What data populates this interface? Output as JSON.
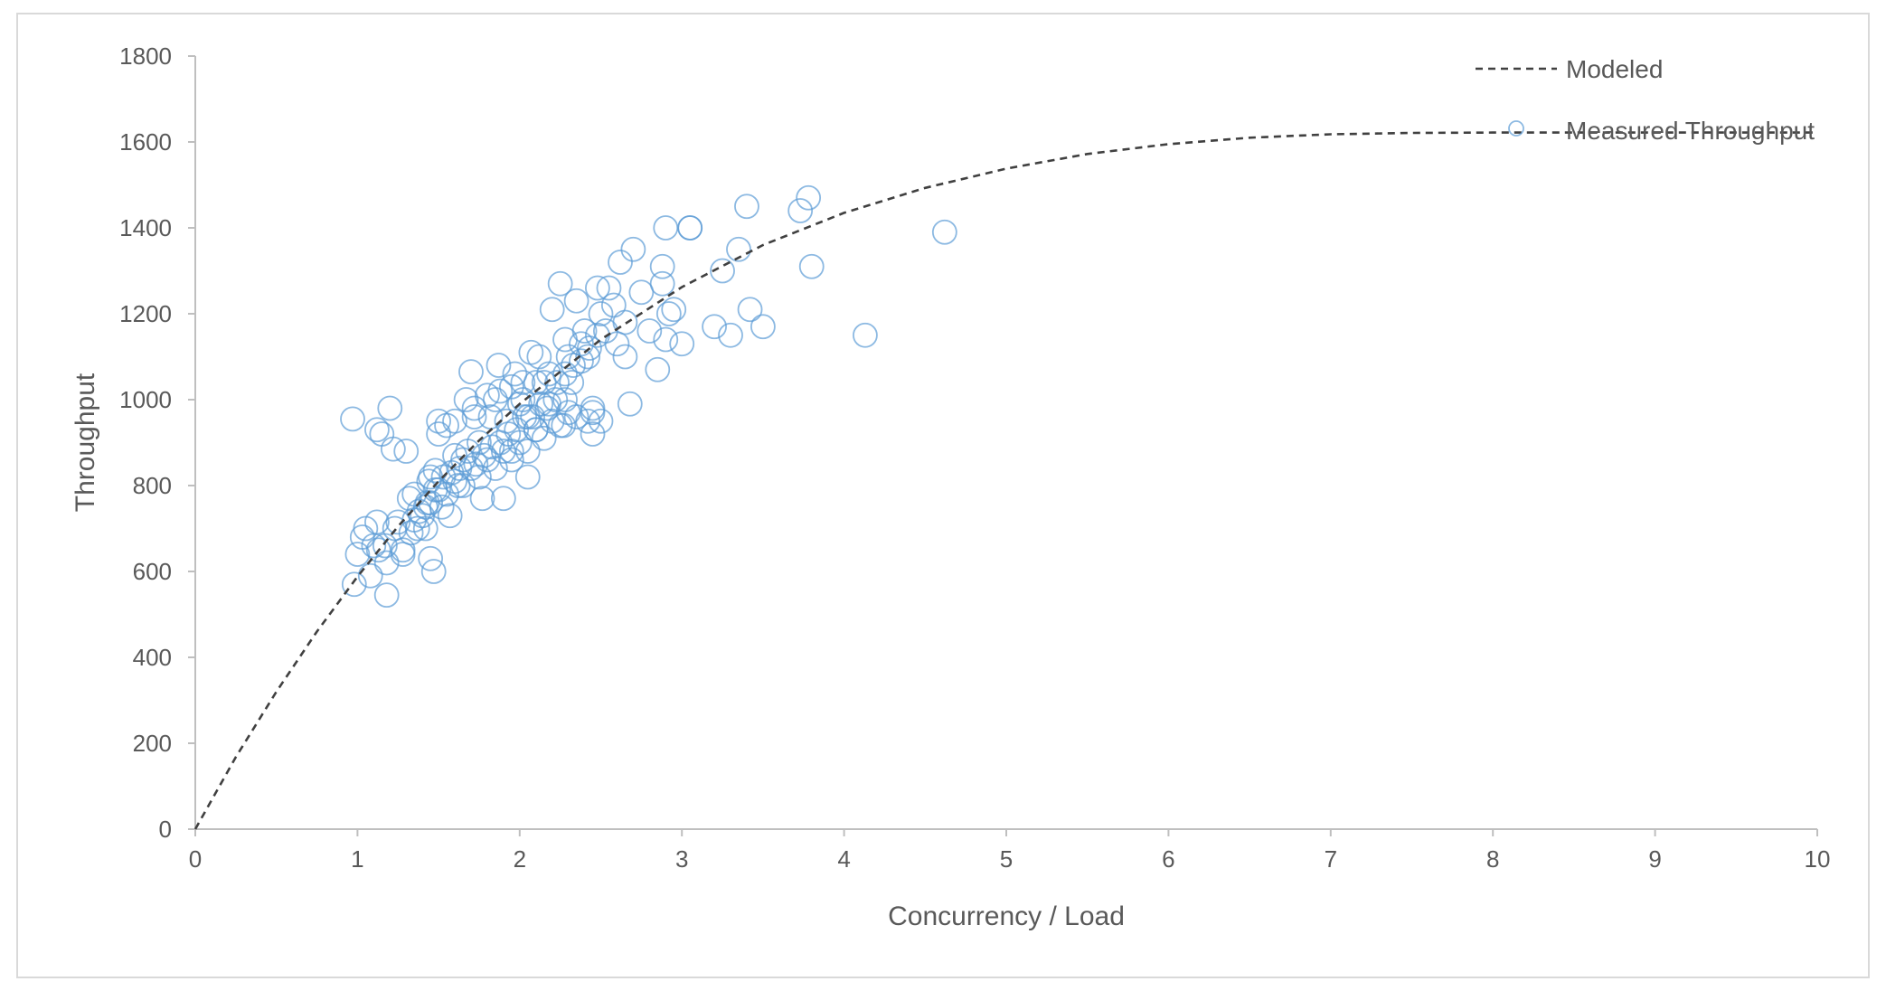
{
  "chart_data": {
    "type": "scatter",
    "title": "",
    "xlabel": "Concurrency / Load",
    "ylabel": "Throughput",
    "xlim": [
      0,
      10
    ],
    "ylim": [
      0,
      1800
    ],
    "x_ticks": [
      "0",
      "1",
      "2",
      "3",
      "4",
      "5",
      "6",
      "7",
      "8",
      "9",
      "10"
    ],
    "y_ticks": [
      "0",
      "200",
      "400",
      "600",
      "800",
      "1000",
      "1200",
      "1400",
      "1600",
      "1800"
    ],
    "grid": false,
    "legend_position": "top-right",
    "colors": {
      "measured": "#5b9bd5",
      "modeled": "#404040",
      "axis": "#bfbfbf",
      "text": "#595959"
    },
    "series": [
      {
        "name": "Modeled",
        "type": "line",
        "style": "dashed",
        "x": [
          0,
          0.25,
          0.5,
          0.75,
          1,
          1.25,
          1.5,
          1.75,
          2,
          2.5,
          3,
          3.5,
          4,
          4.5,
          5,
          5.5,
          6,
          6.5,
          7,
          7.5,
          8,
          8.5,
          9,
          9.5,
          10
        ],
        "y": [
          0,
          168,
          320,
          460,
          588,
          705,
          810,
          905,
          990,
          1140,
          1262,
          1360,
          1435,
          1493,
          1538,
          1572,
          1595,
          1610,
          1618,
          1621,
          1622,
          1622,
          1622,
          1622,
          1622
        ]
      },
      {
        "name": "Measured Throughput",
        "type": "scatter",
        "x": [
          0.97,
          1.0,
          1.05,
          1.1,
          1.12,
          1.15,
          1.18,
          1.2,
          1.22,
          1.25,
          1.28,
          1.3,
          1.32,
          1.35,
          1.37,
          1.4,
          1.42,
          1.44,
          1.45,
          1.47,
          1.48,
          1.5,
          1.52,
          1.55,
          1.57,
          1.6,
          1.62,
          1.65,
          1.67,
          1.7,
          1.72,
          1.75,
          1.77,
          1.8,
          1.82,
          1.85,
          1.87,
          1.9,
          1.92,
          1.95,
          1.97,
          2.0,
          2.02,
          2.05,
          2.07,
          2.1,
          2.12,
          2.15,
          2.17,
          2.2,
          2.22,
          2.25,
          2.27,
          2.3,
          2.32,
          2.35,
          2.38,
          2.4,
          2.42,
          2.45,
          2.48,
          2.5,
          2.55,
          2.6,
          2.62,
          2.65,
          2.7,
          2.75,
          2.8,
          2.85,
          2.88,
          2.9,
          2.95,
          3.0,
          3.05,
          3.2,
          3.25,
          3.3,
          3.35,
          3.4,
          3.42,
          3.5,
          3.73,
          3.78,
          3.8,
          4.13,
          4.62,
          0.98,
          1.03,
          1.08,
          1.13,
          1.18,
          1.23,
          1.28,
          1.33,
          1.38,
          1.43,
          1.48,
          1.53,
          1.58,
          1.63,
          1.68,
          1.73,
          1.78,
          1.83,
          1.88,
          1.93,
          1.98,
          2.03,
          2.08,
          2.13,
          2.18,
          2.23,
          2.28,
          2.33,
          2.38,
          2.43,
          2.48,
          2.53,
          1.45,
          1.5,
          1.6,
          1.7,
          1.8,
          1.9,
          2.0,
          2.1,
          2.2,
          2.3,
          1.42,
          1.55,
          1.65,
          1.75,
          1.85,
          1.95,
          2.05,
          2.15,
          2.25,
          2.35,
          2.45,
          1.35,
          1.6,
          1.72,
          1.88,
          2.02,
          2.18,
          2.28,
          2.42,
          2.58,
          2.68,
          2.88,
          3.05,
          2.92,
          2.28,
          2.5,
          2.65,
          2.9,
          1.17,
          1.12,
          1.45,
          1.5,
          2.45,
          2.1,
          2.05,
          1.95
        ],
        "y": [
          955,
          640,
          700,
          660,
          715,
          920,
          545,
          980,
          885,
          715,
          640,
          880,
          770,
          780,
          700,
          730,
          700,
          810,
          630,
          600,
          835,
          920,
          750,
          940,
          730,
          870,
          800,
          860,
          1000,
          1065,
          960,
          900,
          770,
          1010,
          960,
          1000,
          1080,
          770,
          950,
          880,
          1060,
          990,
          1000,
          820,
          1110,
          1040,
          1100,
          1040,
          980,
          1210,
          1000,
          1270,
          940,
          1100,
          1040,
          1230,
          1130,
          1160,
          950,
          920,
          1260,
          950,
          1260,
          1130,
          1320,
          1180,
          1350,
          1250,
          1160,
          1070,
          1310,
          1400,
          1210,
          1130,
          1400,
          1170,
          1300,
          1150,
          1350,
          1450,
          1210,
          1170,
          1440,
          1470,
          1310,
          1150,
          1390,
          570,
          680,
          590,
          650,
          620,
          700,
          650,
          690,
          740,
          760,
          790,
          820,
          830,
          840,
          880,
          850,
          870,
          890,
          900,
          920,
          930,
          960,
          960,
          990,
          990,
          1040,
          1060,
          1080,
          1090,
          1120,
          1150,
          1160,
          760,
          790,
          810,
          840,
          860,
          880,
          900,
          930,
          950,
          970,
          750,
          780,
          800,
          820,
          840,
          860,
          880,
          910,
          940,
          960,
          980,
          720,
          950,
          980,
          1020,
          1040,
          1060,
          1000,
          1100,
          1220,
          990,
          1270,
          1400,
          1200,
          1140,
          1200,
          1100,
          1140,
          660,
          930,
          820,
          950,
          970,
          930,
          960,
          1030
        ]
      }
    ]
  }
}
